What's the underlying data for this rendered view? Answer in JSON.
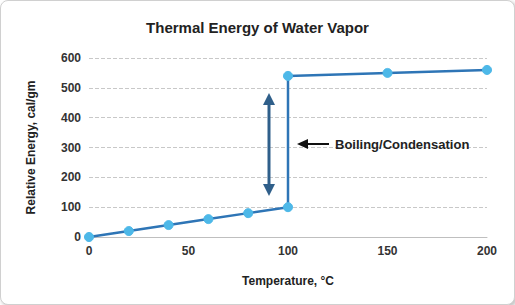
{
  "chart_data": {
    "type": "line",
    "title": "Thermal Energy of Water Vapor",
    "x_label": "Temperature, °C",
    "y_label": "Relative Energy, cal/gm",
    "x": [
      0,
      20,
      40,
      60,
      80,
      100,
      100,
      150,
      200
    ],
    "values": [
      0,
      20,
      40,
      60,
      80,
      100,
      540,
      550,
      560
    ],
    "color": "#2e75b6",
    "marker": "circle",
    "line_style": "solid",
    "xlim": [
      0,
      200
    ],
    "xticks": [
      0,
      50,
      100,
      150,
      200
    ],
    "ylim": [
      0,
      600
    ],
    "yticks": [
      0,
      100,
      200,
      300,
      400,
      500,
      600
    ],
    "grid": true,
    "annotations": [
      "Boiling/Condensation"
    ]
  }
}
